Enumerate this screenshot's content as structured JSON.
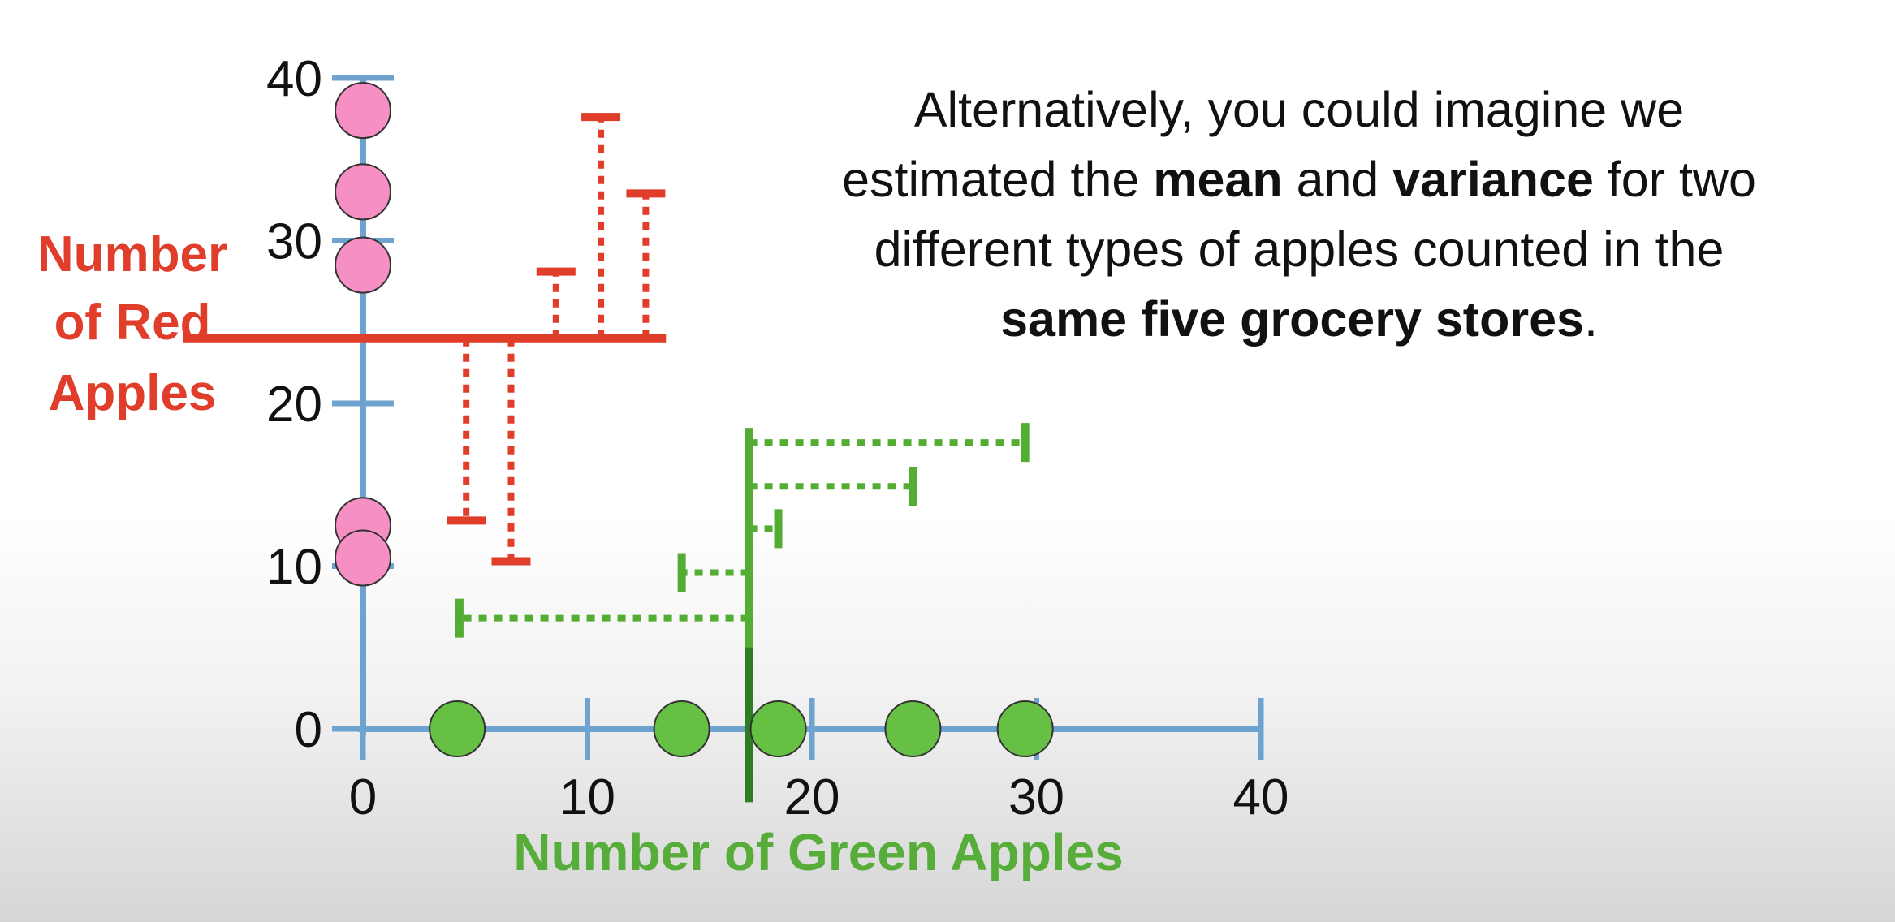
{
  "caption": {
    "line1": "Alternatively, you could imagine we",
    "line2_pre": "estimated the ",
    "line2_bold1": "mean",
    "line2_mid": " and ",
    "line2_bold2": "variance",
    "line2_post": " for two",
    "line3": "different types of apples counted in the",
    "line4_bold": "same five grocery stores",
    "line4_post": "."
  },
  "chart_data": {
    "type": "scatter",
    "xlabel": "Number of Green Apples",
    "ylabel_lines": [
      "Number",
      "of Red",
      "Apples"
    ],
    "xlim": [
      0,
      40
    ],
    "ylim": [
      0,
      40
    ],
    "x_ticks": [
      0,
      10,
      20,
      30,
      40
    ],
    "y_ticks": [
      0,
      10,
      20,
      30,
      40
    ],
    "x_tick_labels": [
      "0",
      "10",
      "20",
      "30",
      "40"
    ],
    "y_tick_labels": [
      "0",
      "10",
      "20",
      "30",
      "40"
    ],
    "red_apples": {
      "values": [
        38,
        33,
        28.5,
        12.5,
        10.5
      ],
      "mean": 24,
      "color": "#f58fc4",
      "line_color": "#e03d2a"
    },
    "green_apples": {
      "values": [
        4.2,
        14.2,
        18.5,
        24.5,
        29.5
      ],
      "mean": 17.2,
      "color": "#66c044",
      "line_color": "#52ad32"
    },
    "axis_color": "#6fa3cf",
    "red_residuals": [
      {
        "value": 12.8,
        "x": 4.6
      },
      {
        "value": 10.3,
        "x": 6.6
      },
      {
        "value": 28.1,
        "x": 8.6
      },
      {
        "value": 37.6,
        "x": 10.6
      },
      {
        "value": 32.9,
        "x": 12.6
      }
    ],
    "green_residuals": [
      {
        "value": 4.3,
        "y": 6.8
      },
      {
        "value": 14.2,
        "y": 9.6
      },
      {
        "value": 18.5,
        "y": 12.3
      },
      {
        "value": 24.5,
        "y": 14.9
      },
      {
        "value": 29.5,
        "y": 17.6
      }
    ]
  }
}
